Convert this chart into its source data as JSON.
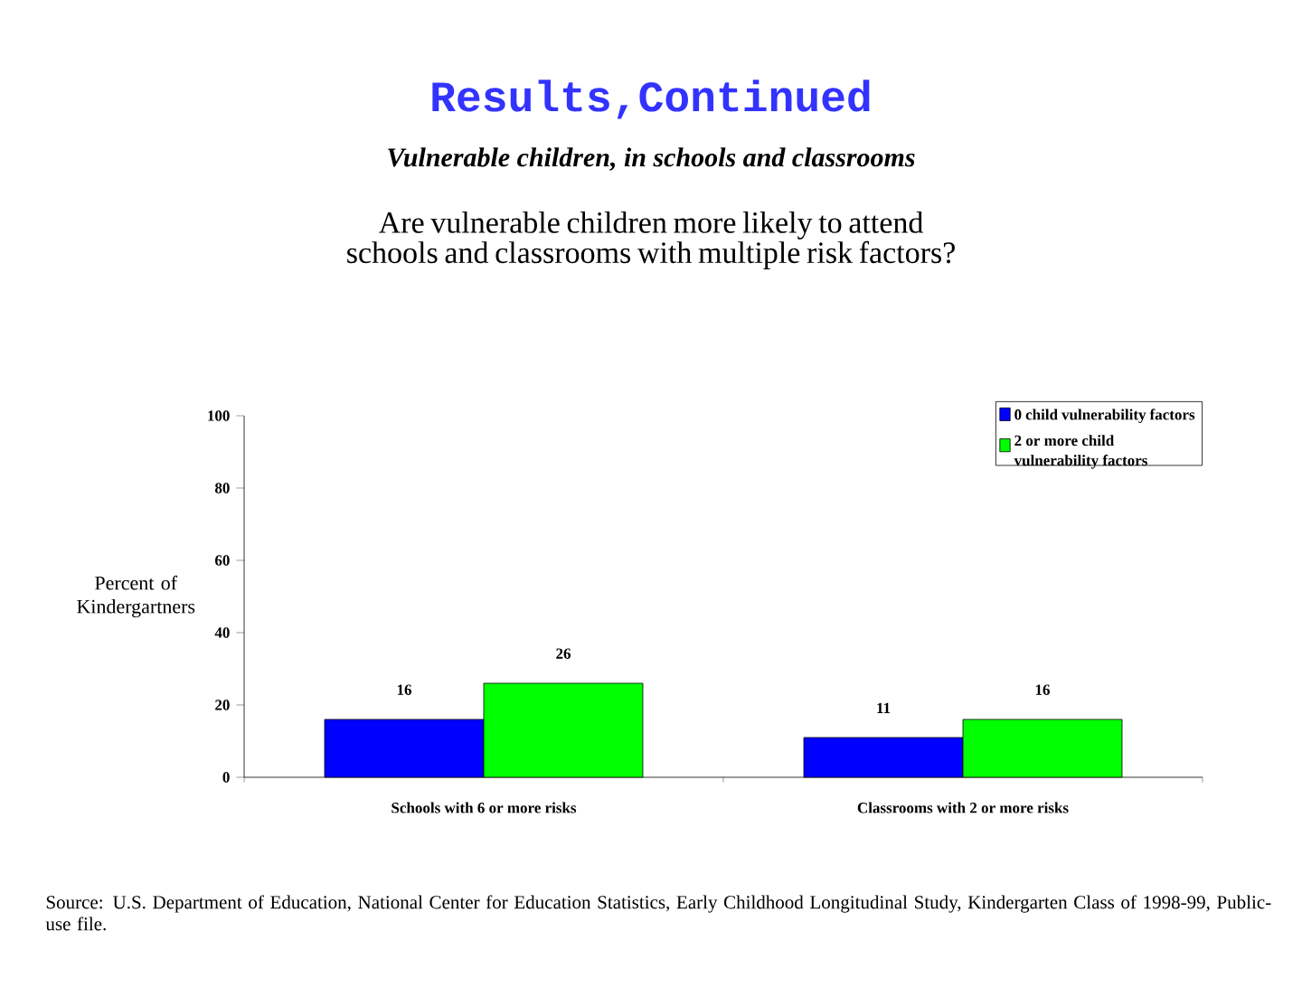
{
  "chart_data": {
    "type": "bar",
    "title": "Results,Continued",
    "subtitle": "Vulnerable children, in schools and classrooms",
    "annotations": [
      "Are vulnerable children more likely to attend schools and classrooms with multiple risk factors?",
      "Source: U.S. Department of Education, National Center for Education Statistics, Early Childhood Longitudinal Study, Kindergarten Class of 1998-99, Public-use file."
    ],
    "ylabel": "Percent of Kindergartners",
    "categories": [
      "Schools with 6 or more risks",
      "Classrooms with 2 or more risks"
    ],
    "series": [
      {
        "name": "0 child vulnerability factors",
        "color": "#0000ff",
        "values": [
          16,
          11
        ]
      },
      {
        "name": "2 or more child vulnerability factors",
        "color": "#00ff00",
        "values": [
          26,
          16
        ]
      }
    ],
    "ylim": [
      0,
      100
    ],
    "yticks": [
      0,
      20,
      40,
      60,
      80,
      100
    ],
    "data_labels": true,
    "legend": "top right"
  }
}
